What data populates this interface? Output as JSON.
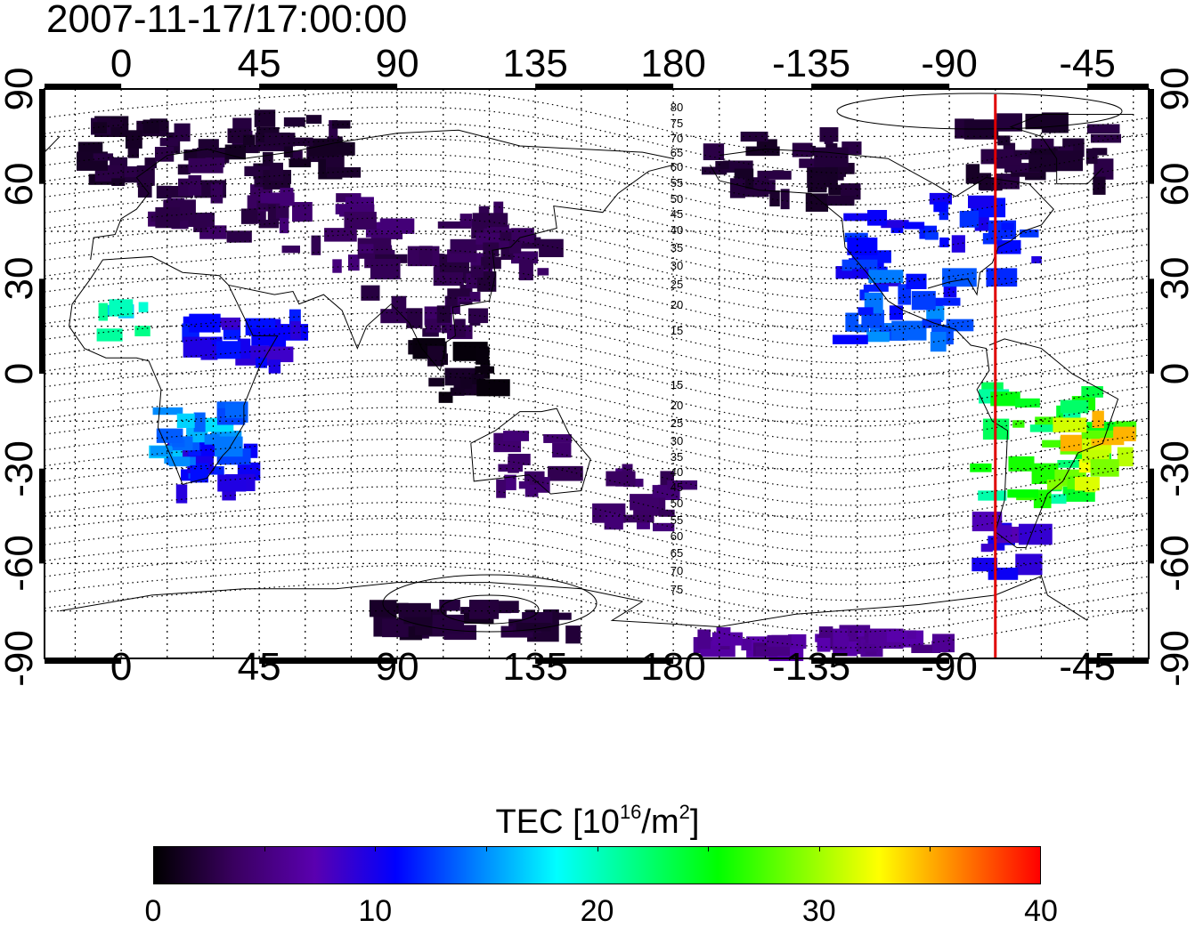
{
  "timestamp": "2007-11-17/17:00:00",
  "top_lon_ticks": [
    "0",
    "45",
    "90",
    "135",
    "180",
    "-135",
    "-90",
    "-45"
  ],
  "bottom_lon_ticks": [
    "0",
    "45",
    "90",
    "135",
    "180",
    "-135",
    "-90",
    "-45"
  ],
  "left_lat_ticks": [
    "90",
    "60",
    "30",
    "0",
    "-30",
    "-60",
    "-90"
  ],
  "right_lat_ticks": [
    "90",
    "60",
    "30",
    "0",
    "-30",
    "-60",
    "-90"
  ],
  "contour_labels": [
    "80",
    "75",
    "70",
    "65",
    "60",
    "55",
    "50",
    "45",
    "40",
    "35",
    "30",
    "25",
    "20",
    "15",
    "15",
    "20",
    "25",
    "30",
    "35",
    "40",
    "45",
    "50",
    "55",
    "60",
    "65",
    "70",
    "75"
  ],
  "marker": {
    "longitude": -75,
    "color": "#e00000"
  },
  "colorbar": {
    "title_main": "TEC  [10",
    "title_exp": "16",
    "title_mid": "/m",
    "title_exp2": "2",
    "title_end": "]",
    "min": 0,
    "max": 40,
    "tick_labels": [
      "0",
      "10",
      "20",
      "30",
      "40"
    ],
    "colors": [
      "#000000",
      "#3a0060",
      "#5a00b0",
      "#0000ff",
      "#0080ff",
      "#00ffff",
      "#00ff80",
      "#00ff00",
      "#80ff00",
      "#ffff00",
      "#ff8000",
      "#ff0000"
    ]
  },
  "chart_data": {
    "type": "heatmap",
    "title": "2007-11-17/17:00:00",
    "quantity": "TEC  [10^16/m^2]",
    "xlim": [
      -25,
      335
    ],
    "ylim": [
      -90,
      90
    ],
    "grid": true,
    "regions": [
      {
        "lon": 10,
        "lat": 68,
        "tec": 2
      },
      {
        "lon": 30,
        "lat": 55,
        "tec": 3
      },
      {
        "lon": 55,
        "lat": 70,
        "tec": 2
      },
      {
        "lon": 0,
        "lat": 15,
        "tec": 19
      },
      {
        "lon": 40,
        "lat": 10,
        "tec": 10
      },
      {
        "lon": 30,
        "lat": -30,
        "tec": 11
      },
      {
        "lon": 25,
        "lat": -20,
        "tec": 15
      },
      {
        "lon": 70,
        "lat": 45,
        "tec": 4
      },
      {
        "lon": 100,
        "lat": 25,
        "tec": 3
      },
      {
        "lon": 110,
        "lat": 0,
        "tec": 1
      },
      {
        "lon": 125,
        "lat": 40,
        "tec": 3
      },
      {
        "lon": 135,
        "lat": -28,
        "tec": 4
      },
      {
        "lon": 170,
        "lat": -40,
        "tec": 4
      },
      {
        "lon": 215,
        "lat": 65,
        "tec": 2
      },
      {
        "lon": 270,
        "lat": 40,
        "tec": 11
      },
      {
        "lon": 255,
        "lat": 20,
        "tec": 13
      },
      {
        "lon": 300,
        "lat": -20,
        "tec": 24
      },
      {
        "lon": 315,
        "lat": -25,
        "tec": 31
      },
      {
        "lon": 300,
        "lat": 70,
        "tec": 2
      },
      {
        "lon": 290,
        "lat": -55,
        "tec": 9
      },
      {
        "lon": 120,
        "lat": -78,
        "tec": 2
      },
      {
        "lon": 230,
        "lat": -85,
        "tec": 6
      }
    ]
  }
}
